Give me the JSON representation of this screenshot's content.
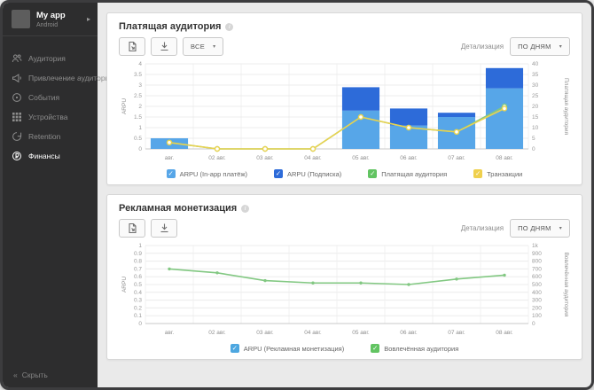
{
  "sidebar": {
    "app_name": "My app",
    "app_platform": "Android",
    "items": [
      {
        "label": "Аудитория",
        "icon": "audience-icon",
        "active": false
      },
      {
        "label": "Привлечение аудитории",
        "icon": "acquisition-icon",
        "active": false
      },
      {
        "label": "События",
        "icon": "events-icon",
        "active": false
      },
      {
        "label": "Устройства",
        "icon": "devices-icon",
        "active": false
      },
      {
        "label": "Retention",
        "icon": "retention-icon",
        "active": false
      },
      {
        "label": "Финансы",
        "icon": "finance-icon",
        "active": true
      }
    ],
    "collapse_label": "Скрыть",
    "collapse_icon_glyph": "«"
  },
  "panels": [
    {
      "title": "Платящая аудитория",
      "filter_value": "ВСЕ",
      "detail_label": "Детализация",
      "detail_value": "ПО ДНЯМ",
      "legend": [
        {
          "label": "ARPU (In-app платёж)",
          "color": "#57a6e8",
          "checked": true
        },
        {
          "label": "ARPU (Подписка)",
          "color": "#2d6bd9",
          "checked": true
        },
        {
          "label": "Платящая аудитория",
          "color": "#62c462",
          "checked": true
        },
        {
          "label": "Транзакции",
          "color": "#efd04d",
          "checked": true
        }
      ]
    },
    {
      "title": "Рекламная монетизация",
      "detail_label": "Детализация",
      "detail_value": "ПО ДНЯМ",
      "legend": [
        {
          "label": "ARPU (Рекламная монетизация)",
          "color": "#4da7e0",
          "checked": true
        },
        {
          "label": "Вовлечённая аудитория",
          "color": "#62c462",
          "checked": true
        }
      ]
    }
  ],
  "chart_data": [
    {
      "type": "bar",
      "title": "Платящая аудитория",
      "categories": [
        "авг.",
        "02 авг.",
        "03 авг.",
        "04 авг.",
        "05 авг.",
        "06 авг.",
        "07 авг.",
        "08 авг."
      ],
      "left_axis": {
        "label": "ARPU",
        "min": 0,
        "max": 4,
        "step": 0.5
      },
      "right_axis": {
        "label": "Платящая аудитория",
        "min": 0,
        "max": 40,
        "step": 5
      },
      "bar_series": [
        {
          "name": "ARPU (In-app платёж)",
          "color": "#57a6e8",
          "axis": "left",
          "values": [
            0.5,
            0,
            0,
            0,
            1.8,
            1.1,
            1.5,
            2.85
          ]
        },
        {
          "name": "ARPU (Подписка)",
          "color": "#2d6bd9",
          "axis": "left",
          "values": [
            0,
            0,
            0,
            0,
            1.1,
            0.8,
            0.2,
            0.95
          ]
        }
      ],
      "line_series": [
        {
          "name": "Платящая аудитория",
          "color": "#82c882",
          "axis": "right",
          "marker": "hollow",
          "values": [
            3,
            0,
            0,
            0,
            15,
            10,
            8,
            20
          ]
        },
        {
          "name": "Транзакции",
          "color": "#e9d24f",
          "axis": "right",
          "marker": "hollow",
          "values": [
            3,
            0,
            0,
            0,
            15,
            10,
            8,
            19
          ]
        }
      ],
      "grid": true,
      "legend_position": "bottom"
    },
    {
      "type": "line",
      "title": "Рекламная монетизация",
      "categories": [
        "авг.",
        "02 авг.",
        "03 авг.",
        "04 авг.",
        "05 авг.",
        "06 авг.",
        "07 авг.",
        "08 авг."
      ],
      "left_axis": {
        "label": "ARPU",
        "min": 0,
        "max": 1,
        "step": 0.1
      },
      "right_axis": {
        "label": "Вовлечённая аудитория",
        "min": 0,
        "max": 1000,
        "step": 100,
        "top_label": "1k"
      },
      "line_series": [
        {
          "name": "Вовлечённая аудитория",
          "color": "#82c882",
          "axis": "right",
          "marker": "dot",
          "values": [
            700,
            650,
            550,
            520,
            520,
            500,
            570,
            620
          ]
        }
      ],
      "grid": true,
      "legend_position": "bottom"
    }
  ]
}
